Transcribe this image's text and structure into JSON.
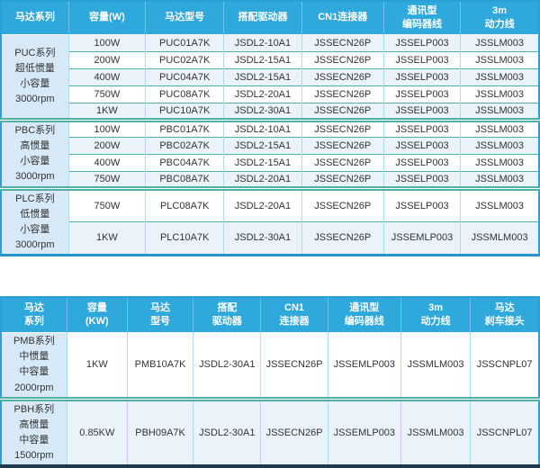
{
  "colors": {
    "header_bg": "#2FA8DB",
    "header_text": "#FFFFFF",
    "series_cell_bg": "#D7E9F6",
    "row_tint_bg": "#EAF3FA",
    "row_plain_bg": "#FFFFFF",
    "row_divider": "#4FB0AA",
    "column_divider": "#AFDAEF",
    "outer_border": "#2BA0D6",
    "cell_text": "#333333"
  },
  "table1": {
    "headers": [
      [
        "马达系列"
      ],
      [
        "容量(W)"
      ],
      [
        "马达型号"
      ],
      [
        "搭配驱动器"
      ],
      [
        "CN1连接器"
      ],
      [
        "通讯型",
        "编码器线"
      ],
      [
        "3m",
        "动力线"
      ]
    ],
    "groups": [
      {
        "series_lines": [
          "PUC系列",
          "超低惯量",
          "小容量",
          "3000rpm"
        ],
        "rows": [
          [
            "100W",
            "PUC01A7K",
            "JSDL2-10A1",
            "JSSECN26P",
            "JSSELP003",
            "JSSLM003"
          ],
          [
            "200W",
            "PUC02A7K",
            "JSDL2-15A1",
            "JSSECN26P",
            "JSSELP003",
            "JSSLM003"
          ],
          [
            "400W",
            "PUC04A7K",
            "JSDL2-15A1",
            "JSSECN26P",
            "JSSELP003",
            "JSSLM003"
          ],
          [
            "750W",
            "PUC08A7K",
            "JSDL2-20A1",
            "JSSECN26P",
            "JSSELP003",
            "JSSLM003"
          ],
          [
            "1KW",
            "PUC10A7K",
            "JSDL2-30A1",
            "JSSECN26P",
            "JSSELP003",
            "JSSLM003"
          ]
        ]
      },
      {
        "series_lines": [
          "PBC系列",
          "高惯量",
          "小容量",
          "3000rpm"
        ],
        "rows": [
          [
            "100W",
            "PBC01A7K",
            "JSDL2-10A1",
            "JSSECN26P",
            "JSSELP003",
            "JSSLM003"
          ],
          [
            "200W",
            "PBC02A7K",
            "JSDL2-15A1",
            "JSSECN26P",
            "JSSELP003",
            "JSSLM003"
          ],
          [
            "400W",
            "PBC04A7K",
            "JSDL2-15A1",
            "JSSECN26P",
            "JSSELP003",
            "JSSLM003"
          ],
          [
            "750W",
            "PBC08A7K",
            "JSDL2-20A1",
            "JSSECN26P",
            "JSSELP003",
            "JSSLM003"
          ]
        ]
      },
      {
        "series_lines": [
          "PLC系列",
          "低惯量",
          "小容量",
          "3000rpm"
        ],
        "rows": [
          [
            "750W",
            "PLC08A7K",
            "JSDL2-20A1",
            "JSSECN26P",
            "JSSELP003",
            "JSSLM003"
          ],
          [
            "1KW",
            "PLC10A7K",
            "JSDL2-30A1",
            "JSSECN26P",
            "JSSEMLP003",
            "JSSMLM003"
          ]
        ]
      }
    ]
  },
  "table2": {
    "headers": [
      [
        "马达",
        "系列"
      ],
      [
        "容量",
        "(KW)"
      ],
      [
        "马达",
        "型号"
      ],
      [
        "搭配",
        "驱动器"
      ],
      [
        "CN1",
        "连接器"
      ],
      [
        "通讯型",
        "编码器线"
      ],
      [
        "3m",
        "动力线"
      ],
      [
        "马达",
        "刹车接头"
      ]
    ],
    "groups": [
      {
        "series_lines": [
          "PMB系列",
          "中惯量",
          "中容量",
          "2000rpm"
        ],
        "rows": [
          [
            "1KW",
            "PMB10A7K",
            "JSDL2-30A1",
            "JSSECN26P",
            "JSSEMLP003",
            "JSSMLM003",
            "JSSCNPL07"
          ]
        ]
      },
      {
        "series_lines": [
          "PBH系列",
          "高惯量",
          "中容量",
          "1500rpm"
        ],
        "rows": [
          [
            "0.85KW",
            "PBH09A7K",
            "JSDL2-30A1",
            "JSSECN26P",
            "JSSEMLP003",
            "JSSMLM003",
            "JSSCNPL07"
          ]
        ]
      }
    ]
  }
}
